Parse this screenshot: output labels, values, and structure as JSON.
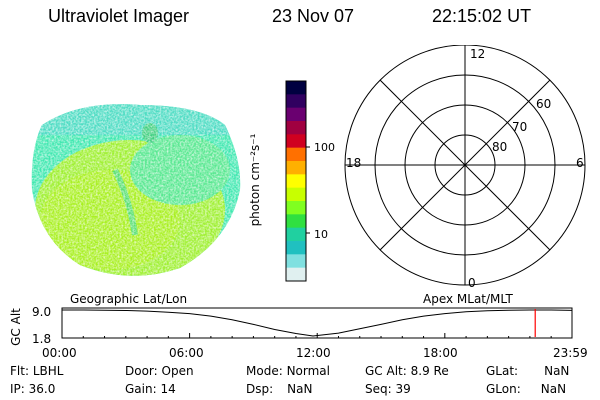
{
  "header": {
    "instrument": "Ultraviolet Imager",
    "date": "23 Nov 07",
    "time": "22:15:02 UT"
  },
  "colorbar": {
    "label": "photon cm⁻²s⁻¹",
    "tick_labels": [
      "100",
      "10"
    ],
    "colors": [
      "#000040",
      "#300060",
      "#6a0070",
      "#a00040",
      "#d00020",
      "#ff7000",
      "#ffb000",
      "#ffff00",
      "#c8ff00",
      "#80ff20",
      "#30e040",
      "#20d0a0",
      "#20c0c0",
      "#80e0e0",
      "#e0f0f0"
    ]
  },
  "polar_plot": {
    "mlt_labels": {
      "top": "12",
      "left": "18",
      "right": "6",
      "bottom": "0"
    },
    "lat_labels": [
      "60",
      "70",
      "80"
    ]
  },
  "timeline": {
    "left_title": "Geographic Lat/Lon",
    "right_title": "Apex  MLat/MLT",
    "y_axis_label": "GC Alt",
    "y_ticks": [
      "9.0",
      "1.8"
    ],
    "x_ticks": [
      "00:00",
      "06:00",
      "12:00",
      "18:00",
      "23:59"
    ],
    "marker_color": "#ff0000"
  },
  "chart_data": {
    "type": "line",
    "title": "",
    "xlabel": "",
    "ylabel": "GC Alt",
    "x_hours": [
      0,
      1,
      2,
      3,
      4,
      5,
      6,
      7,
      8,
      9,
      10,
      11,
      11.8,
      13,
      14,
      15,
      16,
      17,
      18,
      19,
      20,
      21,
      22,
      23,
      23.98
    ],
    "y_values": [
      9.0,
      9.0,
      8.95,
      8.85,
      8.7,
      8.4,
      8.0,
      7.3,
      6.3,
      5.0,
      3.6,
      2.5,
      1.8,
      2.6,
      3.8,
      5.0,
      6.3,
      7.3,
      8.0,
      8.5,
      8.8,
      8.95,
      9.0,
      9.0,
      8.9
    ],
    "ylim": [
      1.8,
      9.0
    ],
    "xlim": [
      0,
      23.98
    ],
    "current_time_hours": 22.25
  },
  "info": {
    "row1": [
      {
        "label": "Flt:",
        "value": "LBHL"
      },
      {
        "label": "Door:",
        "value": "Open"
      },
      {
        "label": "Mode:",
        "value": "Normal"
      },
      {
        "label": "GC Alt:",
        "value": "8.9 Re"
      },
      {
        "label": "GLat:",
        "value": "NaN"
      }
    ],
    "row2": [
      {
        "label": "IP:",
        "value": "36.0"
      },
      {
        "label": "Gain:",
        "value": "14"
      },
      {
        "label": "Dsp:",
        "value": "NaN"
      },
      {
        "label": "Seq:",
        "value": "39"
      },
      {
        "label": "GLon:",
        "value": "NaN"
      }
    ]
  }
}
